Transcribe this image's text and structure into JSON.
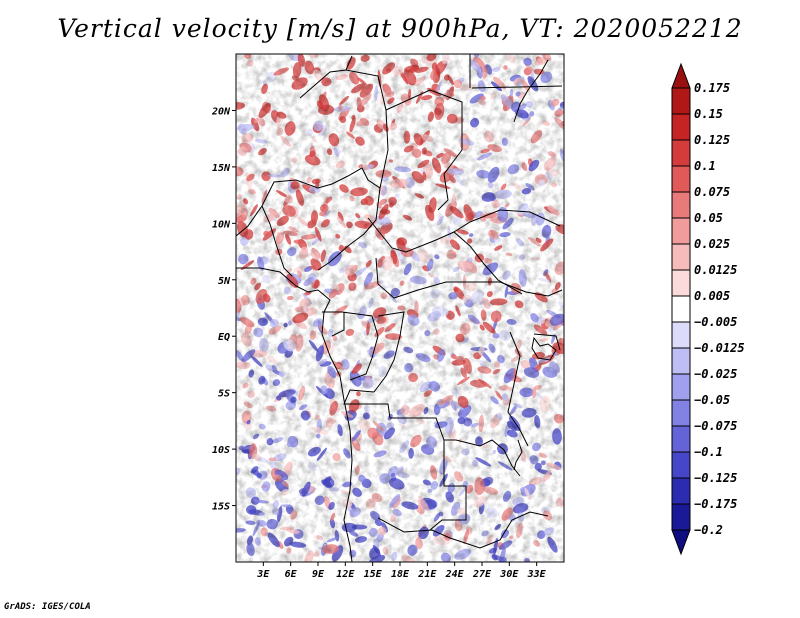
{
  "title": "Vertical velocity [m/s] at 900hPa, VT: 2020052212",
  "credit": "GrADS: IGES/COLA",
  "map": {
    "lon_range": [
      0,
      36
    ],
    "lat_range": [
      -20,
      25
    ],
    "lon_ticks": [
      {
        "v": 3,
        "label": "3E"
      },
      {
        "v": 6,
        "label": "6E"
      },
      {
        "v": 9,
        "label": "9E"
      },
      {
        "v": 12,
        "label": "12E"
      },
      {
        "v": 15,
        "label": "15E"
      },
      {
        "v": 18,
        "label": "18E"
      },
      {
        "v": 21,
        "label": "21E"
      },
      {
        "v": 24,
        "label": "24E"
      },
      {
        "v": 27,
        "label": "27E"
      },
      {
        "v": 30,
        "label": "30E"
      },
      {
        "v": 33,
        "label": "33E"
      }
    ],
    "lat_ticks": [
      {
        "v": 20,
        "label": "20N"
      },
      {
        "v": 15,
        "label": "15N"
      },
      {
        "v": 10,
        "label": "10N"
      },
      {
        "v": 5,
        "label": "5N"
      },
      {
        "v": 0,
        "label": "EQ"
      },
      {
        "v": -5,
        "label": "5S"
      },
      {
        "v": -10,
        "label": "10S"
      },
      {
        "v": -15,
        "label": "15S"
      }
    ]
  },
  "colorbar": {
    "labels": [
      "0.175",
      "0.15",
      "0.125",
      "0.1",
      "0.075",
      "0.05",
      "0.025",
      "0.0125",
      "0.005",
      "−0.005",
      "−0.0125",
      "−0.025",
      "−0.05",
      "−0.075",
      "−0.1",
      "−0.125",
      "−0.175",
      "−0.2"
    ],
    "colors": [
      "#9a1010",
      "#b01818",
      "#c42424",
      "#d43c3c",
      "#e05a5a",
      "#e87a7a",
      "#f09c9c",
      "#f6bcbc",
      "#fadada",
      "#ffffff",
      "#dcdcfa",
      "#bebef4",
      "#a0a0ee",
      "#8282e4",
      "#6464d8",
      "#4646c8",
      "#2c2cb0",
      "#1a1a98",
      "#0e0e80"
    ]
  }
}
